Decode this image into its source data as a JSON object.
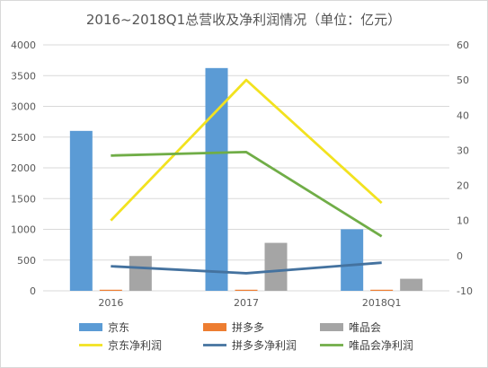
{
  "chart_data": {
    "type": "bar",
    "title": "2016~2018Q1总营收及净利润情况（单位：亿元）",
    "categories": [
      "2016",
      "2017",
      "2018Q1"
    ],
    "axes": {
      "y_left": {
        "min": 0,
        "max": 4000,
        "step": 500,
        "ticks": [
          "0",
          "500",
          "1000",
          "1500",
          "2000",
          "2500",
          "3000",
          "3500",
          "4000"
        ]
      },
      "y_right": {
        "min": -10,
        "max": 60,
        "step": 10,
        "ticks": [
          "-10",
          "0",
          "10",
          "20",
          "30",
          "40",
          "50",
          "60"
        ]
      }
    },
    "grid": "horizontal",
    "legend": "bottom",
    "bar_series": [
      {
        "name": "京东",
        "values": [
          2601,
          3623,
          1001
        ],
        "color": "#5b9bd5",
        "axis": "left"
      },
      {
        "name": "拼多多",
        "values": [
          15,
          17,
          12
        ],
        "color": "#ed7d31",
        "axis": "left"
      },
      {
        "name": "唯品会",
        "values": [
          566,
          780,
          196
        ],
        "color": "#a5a5a5",
        "axis": "left"
      }
    ],
    "line_series": [
      {
        "name": "京东净利润",
        "values": [
          10,
          50,
          15
        ],
        "color": "#f2e21f",
        "axis": "right"
      },
      {
        "name": "拼多多净利润",
        "values": [
          -3,
          -5,
          -2
        ],
        "color": "#44729f",
        "axis": "right"
      },
      {
        "name": "唯品会净利润",
        "values": [
          28.5,
          29.5,
          5.5
        ],
        "color": "#70ad47",
        "axis": "right"
      }
    ]
  }
}
